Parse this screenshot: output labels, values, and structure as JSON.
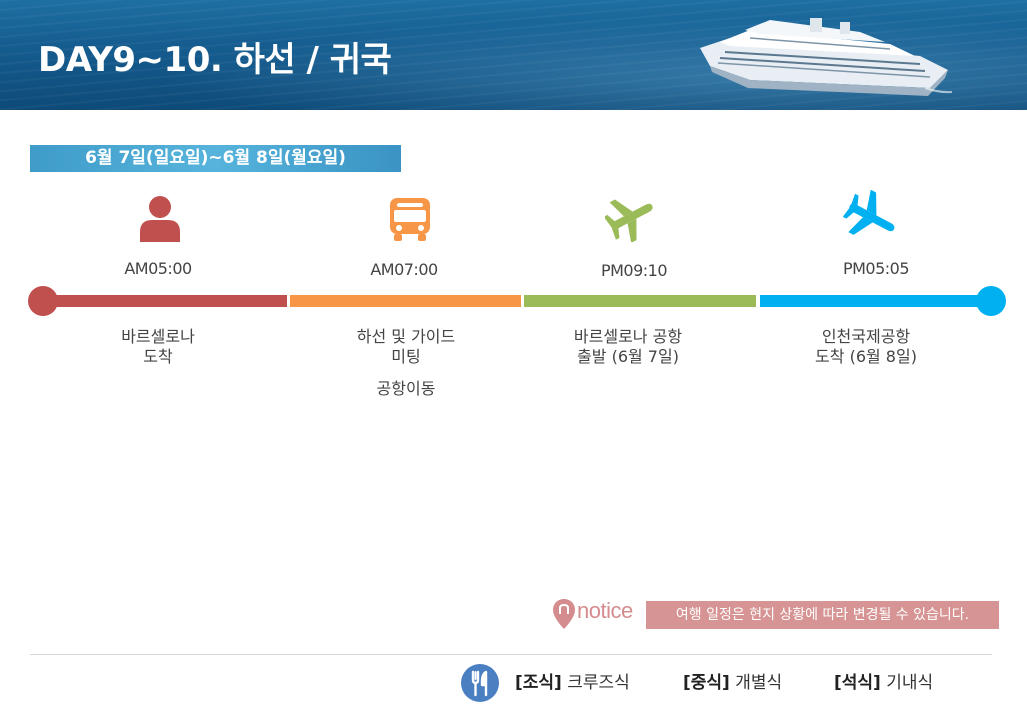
{
  "header": {
    "title": "DAY9~10. 하선 / 귀국"
  },
  "date_range": "6월 7일(일요일)~6월 8일(월요일)",
  "timeline": {
    "colors": [
      "#c0504d",
      "#f79646",
      "#9bbb59",
      "#00b0f0"
    ],
    "steps": [
      {
        "icon": "person-icon",
        "time": "AM05:00",
        "lines": [
          "바르셀로나",
          "도착"
        ],
        "extra": ""
      },
      {
        "icon": "bus-icon",
        "time": "AM07:00",
        "lines": [
          "하선 및 가이드",
          "미팅"
        ],
        "extra": "공항이동"
      },
      {
        "icon": "airplane-icon",
        "time": "PM09:10",
        "lines": [
          "바르셀로나 공항",
          "출발 (6월 7일)"
        ],
        "extra": ""
      },
      {
        "icon": "airplane-icon",
        "time": "PM05:05",
        "lines": [
          "인천국제공항",
          "도착 (6월 8일)"
        ],
        "extra": ""
      }
    ]
  },
  "notice": {
    "label": "notice",
    "text": "여행 일정은 현지 상황에 따라 변경될 수 있습니다."
  },
  "meals": {
    "breakfast_label": "[조식]",
    "breakfast_value": "크루즈식",
    "lunch_label": "[중식]",
    "lunch_value": "개별식",
    "dinner_label": "[석식]",
    "dinner_value": "기내식"
  }
}
